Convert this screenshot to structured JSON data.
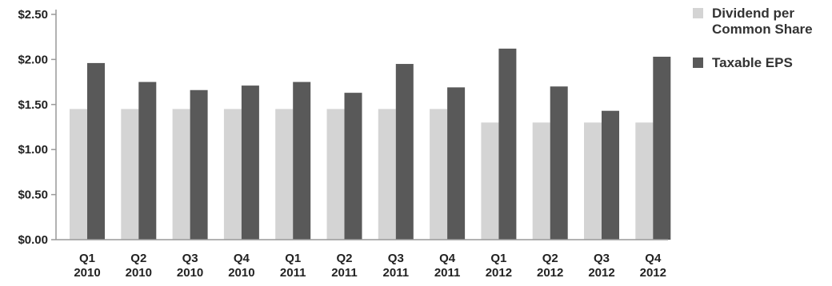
{
  "colors": {
    "background": "#ffffff",
    "axis": "#999999",
    "text": "#222222"
  },
  "chart_data": {
    "type": "bar",
    "categories": [
      [
        "Q1",
        "2010"
      ],
      [
        "Q2",
        "2010"
      ],
      [
        "Q3",
        "2010"
      ],
      [
        "Q4",
        "2010"
      ],
      [
        "Q1",
        "2011"
      ],
      [
        "Q2",
        "2011"
      ],
      [
        "Q3",
        "2011"
      ],
      [
        "Q4",
        "2011"
      ],
      [
        "Q1",
        "2012"
      ],
      [
        "Q2",
        "2012"
      ],
      [
        "Q3",
        "2012"
      ],
      [
        "Q4",
        "2012"
      ]
    ],
    "series": [
      {
        "name": "Dividend per Common Share",
        "legend_lines": [
          "Dividend per",
          "Common Share"
        ],
        "color": "#d4d4d4",
        "values": [
          1.45,
          1.45,
          1.45,
          1.45,
          1.45,
          1.45,
          1.45,
          1.45,
          1.3,
          1.3,
          1.3,
          1.3
        ]
      },
      {
        "name": "Taxable EPS",
        "legend_lines": [
          "Taxable EPS"
        ],
        "color": "#595959",
        "values": [
          1.96,
          1.75,
          1.66,
          1.71,
          1.75,
          1.63,
          1.95,
          1.69,
          2.12,
          1.7,
          1.43,
          2.03
        ]
      }
    ],
    "yticks": [
      "$0.00",
      "$0.50",
      "$1.00",
      "$1.50",
      "$2.00",
      "$2.50"
    ],
    "ytick_values": [
      0,
      0.5,
      1.0,
      1.5,
      2.0,
      2.5
    ],
    "ylim": [
      0,
      2.5
    ],
    "title": "",
    "xlabel": "",
    "ylabel": "",
    "grid": false,
    "legend_position": "right"
  }
}
